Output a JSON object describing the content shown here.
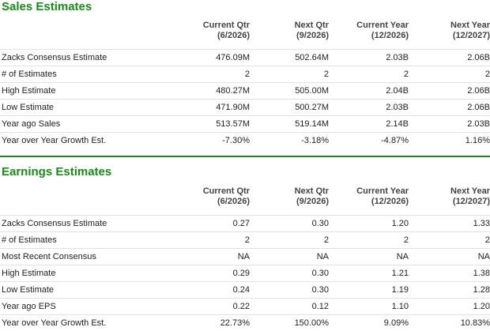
{
  "sales": {
    "title": "Sales Estimates",
    "headers": [
      {
        "line1": "Current Qtr",
        "line2": "(6/2026)"
      },
      {
        "line1": "Next Qtr",
        "line2": "(9/2026)"
      },
      {
        "line1": "Current Year",
        "line2": "(12/2026)"
      },
      {
        "line1": "Next Year",
        "line2": "(12/2027)"
      }
    ],
    "rows": [
      {
        "label": "Zacks Consensus Estimate",
        "values": [
          "476.09M",
          "502.64M",
          "2.03B",
          "2.06B"
        ]
      },
      {
        "label": "# of Estimates",
        "values": [
          "2",
          "2",
          "2",
          "2"
        ]
      },
      {
        "label": "High Estimate",
        "values": [
          "480.27M",
          "505.00M",
          "2.04B",
          "2.06B"
        ]
      },
      {
        "label": "Low Estimate",
        "values": [
          "471.90M",
          "500.27M",
          "2.03B",
          "2.06B"
        ]
      },
      {
        "label": "Year ago Sales",
        "values": [
          "513.57M",
          "519.14M",
          "2.14B",
          "2.03B"
        ]
      },
      {
        "label": "Year over Year Growth Est.",
        "values": [
          "-7.30%",
          "-3.18%",
          "-4.87%",
          "1.16%"
        ]
      }
    ]
  },
  "earnings": {
    "title": "Earnings Estimates",
    "headers": [
      {
        "line1": "Current Qtr",
        "line2": "(6/2026)"
      },
      {
        "line1": "Next Qtr",
        "line2": "(9/2026)"
      },
      {
        "line1": "Current Year",
        "line2": "(12/2026)"
      },
      {
        "line1": "Next Year",
        "line2": "(12/2027)"
      }
    ],
    "rows": [
      {
        "label": "Zacks Consensus Estimate",
        "values": [
          "0.27",
          "0.30",
          "1.20",
          "1.33"
        ]
      },
      {
        "label": "# of Estimates",
        "values": [
          "2",
          "2",
          "2",
          "2"
        ]
      },
      {
        "label": "Most Recent Consensus",
        "values": [
          "NA",
          "NA",
          "NA",
          "NA"
        ]
      },
      {
        "label": "High Estimate",
        "values": [
          "0.29",
          "0.30",
          "1.21",
          "1.38"
        ]
      },
      {
        "label": "Low Estimate",
        "values": [
          "0.24",
          "0.30",
          "1.19",
          "1.28"
        ]
      },
      {
        "label": "Year ago EPS",
        "values": [
          "0.22",
          "0.12",
          "1.10",
          "1.20"
        ]
      },
      {
        "label": "Year over Year Growth Est.",
        "values": [
          "22.73%",
          "150.00%",
          "9.09%",
          "10.83%"
        ]
      }
    ]
  },
  "colors": {
    "title_green": "#1a8a1a",
    "divider_green": "#1a8a1a",
    "row_border": "#e2e2e2"
  }
}
